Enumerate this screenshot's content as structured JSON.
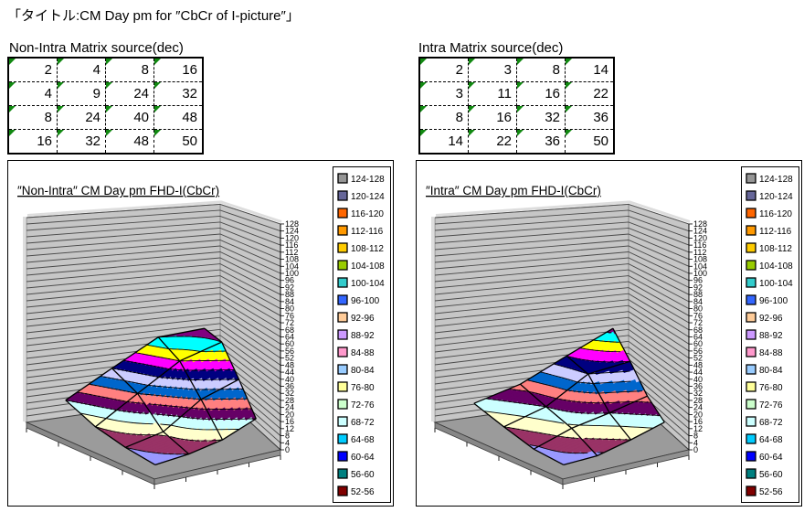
{
  "page_title": "「タイトル:CM Day pm for ″CbCr of I-picture″」",
  "tables": [
    {
      "heading": "Non-Intra Matrix source(dec)",
      "rows": [
        [
          2,
          4,
          8,
          16
        ],
        [
          4,
          9,
          24,
          32
        ],
        [
          8,
          24,
          40,
          48
        ],
        [
          16,
          32,
          48,
          50
        ]
      ]
    },
    {
      "heading": "Intra Matrix source(dec)",
      "rows": [
        [
          2,
          3,
          8,
          14
        ],
        [
          3,
          11,
          16,
          22
        ],
        [
          8,
          16,
          32,
          36
        ],
        [
          14,
          22,
          36,
          50
        ]
      ]
    }
  ],
  "legend": {
    "entries": [
      {
        "label": "124-128",
        "color": "#969696"
      },
      {
        "label": "120-124",
        "color": "#666699"
      },
      {
        "label": "116-120",
        "color": "#FF6600"
      },
      {
        "label": "112-116",
        "color": "#FF9900"
      },
      {
        "label": "108-112",
        "color": "#FFCC00"
      },
      {
        "label": "104-108",
        "color": "#99CC00"
      },
      {
        "label": "100-104",
        "color": "#33CCCC"
      },
      {
        "label": "96-100",
        "color": "#3366FF"
      },
      {
        "label": "92-96",
        "color": "#FFCC99"
      },
      {
        "label": "88-92",
        "color": "#CC99FF"
      },
      {
        "label": "84-88",
        "color": "#FF99CC"
      },
      {
        "label": "80-84",
        "color": "#99CCFF"
      },
      {
        "label": "76-80",
        "color": "#FFFF99"
      },
      {
        "label": "72-76",
        "color": "#CCFFCC"
      },
      {
        "label": "68-72",
        "color": "#CCFFFF"
      },
      {
        "label": "64-68",
        "color": "#00CCFF"
      },
      {
        "label": "60-64",
        "color": "#0000FF"
      },
      {
        "label": "56-60",
        "color": "#008080"
      },
      {
        "label": "52-56",
        "color": "#800000"
      }
    ]
  },
  "chart_data": [
    {
      "type": "surface_3d",
      "title": "″Non-Intra″ CM Day pm FHD-I(CbCr)",
      "matrix": [
        [
          2,
          4,
          8,
          16
        ],
        [
          4,
          9,
          24,
          32
        ],
        [
          8,
          24,
          40,
          48
        ],
        [
          16,
          32,
          48,
          50
        ]
      ],
      "z_axis": {
        "min": 0,
        "max": 128,
        "tick_step": 4
      },
      "band_size": 4,
      "legend_position": "right"
    },
    {
      "type": "surface_3d",
      "title": "″Intra″ CM Day pm FHD-I(CbCr)",
      "matrix": [
        [
          2,
          3,
          8,
          14
        ],
        [
          3,
          11,
          16,
          22
        ],
        [
          8,
          16,
          32,
          36
        ],
        [
          14,
          22,
          36,
          50
        ]
      ],
      "z_axis": {
        "min": 0,
        "max": 128,
        "tick_step": 4
      },
      "band_size": 4,
      "legend_position": "right"
    }
  ],
  "band_palette_0_to_128_step4": [
    "#9999FF",
    "#993366",
    "#FFFFCC",
    "#CCFFFF",
    "#660066",
    "#FF8080",
    "#0066CC",
    "#CCCCFF",
    "#000080",
    "#FF00FF",
    "#FFFF00",
    "#00FFFF",
    "#800080",
    "#800000",
    "#008080",
    "#0000FF",
    "#00CCFF",
    "#CCFFFF",
    "#CCFFCC",
    "#FFFF99",
    "#99CCFF",
    "#FF99CC",
    "#CC99FF",
    "#FFCC99",
    "#3366FF",
    "#33CCCC",
    "#99CC00",
    "#FFCC00",
    "#FF9900",
    "#FF6600",
    "#666699",
    "#969696"
  ],
  "chart_colors": {
    "wall": "#C6C6C6",
    "wall_gridline": "#4A4A4A",
    "wall_cap": "#DDDDDD",
    "floor": "#9B9B9B",
    "floor_side": "#878787",
    "axis": "#000000"
  }
}
